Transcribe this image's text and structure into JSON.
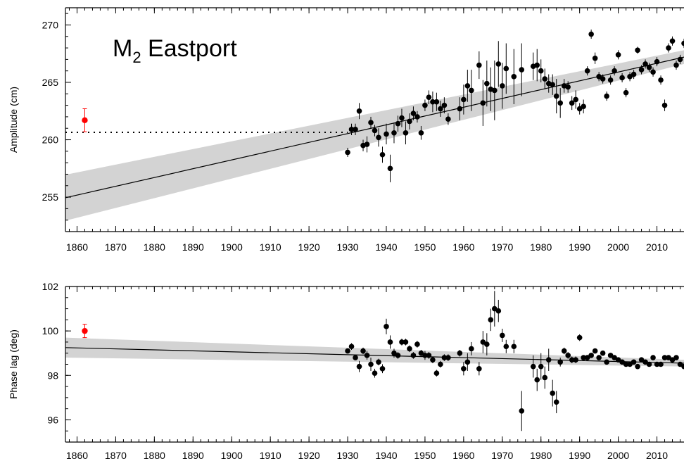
{
  "chart_data": [
    {
      "type": "scatter",
      "title": "M",
      "title_subscript": "2",
      "title_suffix": " Eastport",
      "ylabel": "Amplitude (cm)",
      "xlim": [
        1857,
        2017
      ],
      "ylim": [
        252,
        271.5
      ],
      "xticks": [
        1860,
        1870,
        1880,
        1890,
        1900,
        1910,
        1920,
        1930,
        1940,
        1950,
        1960,
        1970,
        1980,
        1990,
        2000,
        2010
      ],
      "yticks": [
        255,
        260,
        265,
        270
      ],
      "minor_xtick_step": 2,
      "minor_ytick_step": 1,
      "trend": {
        "x0": 1857,
        "y0": 254.95,
        "x1": 2017,
        "y1": 267.2,
        "band_x0": 1857,
        "band_half_x0": 2.0,
        "band_x1": 2017,
        "band_half_x1": 0.6
      },
      "reference_line": {
        "y": 260.65,
        "x0": 1857,
        "x1": 1930
      },
      "highlight_point": {
        "x": 1862,
        "y": 261.7,
        "err": 1.0,
        "color": "#ff0000"
      },
      "point_color": "#000000",
      "band_color": "#d3d3d3",
      "series": [
        {
          "points": [
            [
              1930,
              258.9,
              0.4
            ],
            [
              1931,
              260.9,
              0.5
            ],
            [
              1932,
              260.9,
              0.5
            ],
            [
              1933,
              262.5,
              0.7
            ],
            [
              1934,
              259.5,
              0.5
            ],
            [
              1935,
              259.6,
              0.7
            ],
            [
              1936,
              261.5,
              0.5
            ],
            [
              1937,
              260.8,
              0.5
            ],
            [
              1938,
              260.2,
              0.8
            ],
            [
              1939,
              258.7,
              0.7
            ],
            [
              1940,
              260.5,
              0.9
            ],
            [
              1941,
              257.5,
              1.2
            ],
            [
              1942,
              260.6,
              0.9
            ],
            [
              1943,
              261.4,
              0.7
            ],
            [
              1944,
              261.9,
              0.8
            ],
            [
              1945,
              260.6,
              1.0
            ],
            [
              1946,
              261.6,
              0.7
            ],
            [
              1947,
              262.3,
              0.6
            ],
            [
              1948,
              262.0,
              0.5
            ],
            [
              1949,
              260.6,
              0.6
            ],
            [
              1950,
              263.0,
              0.5
            ],
            [
              1951,
              263.7,
              0.6
            ],
            [
              1952,
              263.3,
              0.9
            ],
            [
              1953,
              263.3,
              0.8
            ],
            [
              1954,
              262.7,
              0.7
            ],
            [
              1955,
              263.0,
              0.7
            ],
            [
              1956,
              261.8,
              0.5
            ],
            [
              1959,
              262.7,
              1.0
            ],
            [
              1960,
              263.5,
              1.3
            ],
            [
              1961,
              264.7,
              1.4
            ],
            [
              1962,
              264.3,
              1.8
            ],
            [
              1964,
              266.5,
              1.2
            ],
            [
              1965,
              263.2,
              2.0
            ],
            [
              1966,
              264.9,
              2.0
            ],
            [
              1967,
              264.4,
              1.9
            ],
            [
              1968,
              264.3,
              2.6
            ],
            [
              1969,
              266.6,
              2.0
            ],
            [
              1970,
              264.7,
              2.0
            ],
            [
              1971,
              266.2,
              2.2
            ],
            [
              1973,
              265.5,
              2.4
            ],
            [
              1975,
              266.1,
              2.3
            ],
            [
              1978,
              266.4,
              1.2
            ],
            [
              1979,
              266.5,
              1.4
            ],
            [
              1980,
              266.0,
              1.0
            ],
            [
              1981,
              265.3,
              0.9
            ],
            [
              1982,
              264.9,
              0.8
            ],
            [
              1983,
              264.8,
              0.9
            ],
            [
              1984,
              263.8,
              1.5
            ],
            [
              1985,
              263.2,
              1.3
            ],
            [
              1986,
              264.7,
              0.6
            ],
            [
              1987,
              264.6,
              0.5
            ],
            [
              1988,
              263.2,
              0.6
            ],
            [
              1989,
              263.5,
              0.8
            ],
            [
              1990,
              262.7,
              0.5
            ],
            [
              1991,
              262.9,
              0.6
            ],
            [
              1992,
              266.0,
              0.4
            ],
            [
              1993,
              269.2,
              0.4
            ],
            [
              1994,
              267.1,
              0.5
            ],
            [
              1995,
              265.5,
              0.4
            ],
            [
              1996,
              265.3,
              0.4
            ],
            [
              1997,
              263.8,
              0.4
            ],
            [
              1998,
              265.2,
              0.4
            ],
            [
              1999,
              266.0,
              0.4
            ],
            [
              2000,
              267.4,
              0.4
            ],
            [
              2001,
              265.4,
              0.4
            ],
            [
              2002,
              264.1,
              0.4
            ],
            [
              2003,
              265.5,
              0.4
            ],
            [
              2004,
              265.7,
              0.4
            ],
            [
              2005,
              267.8,
              0.3
            ],
            [
              2006,
              266.1,
              0.4
            ],
            [
              2007,
              266.6,
              0.4
            ],
            [
              2008,
              266.3,
              0.4
            ],
            [
              2009,
              265.9,
              0.4
            ],
            [
              2010,
              266.8,
              0.4
            ],
            [
              2011,
              265.2,
              0.4
            ],
            [
              2012,
              263.0,
              0.5
            ],
            [
              2013,
              268.0,
              0.4
            ],
            [
              2014,
              268.6,
              0.4
            ],
            [
              2015,
              266.5,
              0.4
            ],
            [
              2016,
              267.0,
              0.4
            ],
            [
              2017,
              268.4,
              0.4
            ]
          ]
        }
      ]
    },
    {
      "type": "scatter",
      "title": "",
      "ylabel": "Phase lag (deg)",
      "xlim": [
        1857,
        2017
      ],
      "ylim": [
        95,
        102
      ],
      "xticks": [
        1860,
        1870,
        1880,
        1890,
        1900,
        1910,
        1920,
        1930,
        1940,
        1950,
        1960,
        1970,
        1980,
        1990,
        2000,
        2010
      ],
      "yticks": [
        96,
        98,
        100,
        102
      ],
      "minor_xtick_step": 2,
      "minor_ytick_step": 0.5,
      "trend": {
        "x0": 1857,
        "y0": 99.25,
        "x1": 2017,
        "y1": 98.55,
        "band_x0": 1857,
        "band_half_x0": 0.45,
        "band_x1": 2017,
        "band_half_x1": 0.15
      },
      "highlight_point": {
        "x": 1862,
        "y": 100.0,
        "err": 0.3,
        "color": "#ff0000"
      },
      "point_color": "#000000",
      "band_color": "#d3d3d3",
      "series": [
        {
          "points": [
            [
              1930,
              99.1,
              0.1
            ],
            [
              1931,
              99.3,
              0.15
            ],
            [
              1932,
              98.8,
              0.1
            ],
            [
              1933,
              98.4,
              0.25
            ],
            [
              1934,
              99.1,
              0.15
            ],
            [
              1935,
              98.9,
              0.2
            ],
            [
              1936,
              98.5,
              0.3
            ],
            [
              1937,
              98.1,
              0.2
            ],
            [
              1938,
              98.6,
              0.15
            ],
            [
              1939,
              98.3,
              0.2
            ],
            [
              1940,
              100.2,
              0.35
            ],
            [
              1941,
              99.5,
              0.3
            ],
            [
              1942,
              99.0,
              0.2
            ],
            [
              1943,
              98.9,
              0.15
            ],
            [
              1944,
              99.5,
              0.15
            ],
            [
              1945,
              99.5,
              0.15
            ],
            [
              1946,
              99.2,
              0.15
            ],
            [
              1947,
              98.9,
              0.15
            ],
            [
              1948,
              99.4,
              0.15
            ],
            [
              1949,
              99.0,
              0.15
            ],
            [
              1950,
              98.9,
              0.2
            ],
            [
              1951,
              98.9,
              0.15
            ],
            [
              1952,
              98.7,
              0.15
            ],
            [
              1953,
              98.1,
              0.15
            ],
            [
              1954,
              98.5,
              0.15
            ],
            [
              1955,
              98.8,
              0.15
            ],
            [
              1956,
              98.8,
              0.15
            ],
            [
              1959,
              99.0,
              0.15
            ],
            [
              1960,
              98.3,
              0.3
            ],
            [
              1961,
              98.6,
              0.4
            ],
            [
              1962,
              99.2,
              0.3
            ],
            [
              1964,
              98.3,
              0.3
            ],
            [
              1965,
              99.5,
              0.5
            ],
            [
              1966,
              99.4,
              0.5
            ],
            [
              1967,
              100.5,
              0.5
            ],
            [
              1968,
              101.0,
              0.8
            ],
            [
              1969,
              100.9,
              0.5
            ],
            [
              1970,
              99.8,
              0.3
            ],
            [
              1971,
              99.3,
              0.3
            ],
            [
              1973,
              99.3,
              0.3
            ],
            [
              1975,
              96.4,
              0.9
            ],
            [
              1978,
              98.4,
              0.5
            ],
            [
              1979,
              97.8,
              0.5
            ],
            [
              1980,
              98.4,
              0.6
            ],
            [
              1981,
              97.9,
              0.5
            ],
            [
              1982,
              98.7,
              0.5
            ],
            [
              1983,
              97.2,
              0.6
            ],
            [
              1984,
              96.8,
              0.5
            ],
            [
              1985,
              98.6,
              0.2
            ],
            [
              1986,
              99.1,
              0.15
            ],
            [
              1987,
              98.9,
              0.15
            ],
            [
              1988,
              98.7,
              0.15
            ],
            [
              1989,
              98.7,
              0.15
            ],
            [
              1990,
              99.7,
              0.15
            ],
            [
              1991,
              98.8,
              0.1
            ],
            [
              1992,
              98.8,
              0.1
            ],
            [
              1993,
              98.9,
              0.1
            ],
            [
              1994,
              99.1,
              0.1
            ],
            [
              1995,
              98.8,
              0.1
            ],
            [
              1996,
              99.0,
              0.1
            ],
            [
              1997,
              98.6,
              0.1
            ],
            [
              1998,
              98.9,
              0.1
            ],
            [
              1999,
              98.8,
              0.1
            ],
            [
              2000,
              98.7,
              0.1
            ],
            [
              2001,
              98.6,
              0.1
            ],
            [
              2002,
              98.5,
              0.1
            ],
            [
              2003,
              98.5,
              0.1
            ],
            [
              2004,
              98.6,
              0.1
            ],
            [
              2005,
              98.4,
              0.1
            ],
            [
              2006,
              98.7,
              0.1
            ],
            [
              2007,
              98.6,
              0.1
            ],
            [
              2008,
              98.5,
              0.1
            ],
            [
              2009,
              98.8,
              0.1
            ],
            [
              2010,
              98.5,
              0.1
            ],
            [
              2011,
              98.5,
              0.1
            ],
            [
              2012,
              98.8,
              0.1
            ],
            [
              2013,
              98.8,
              0.1
            ],
            [
              2014,
              98.7,
              0.1
            ],
            [
              2015,
              98.8,
              0.1
            ],
            [
              2016,
              98.5,
              0.1
            ],
            [
              2017,
              98.4,
              0.1
            ]
          ]
        }
      ]
    }
  ]
}
